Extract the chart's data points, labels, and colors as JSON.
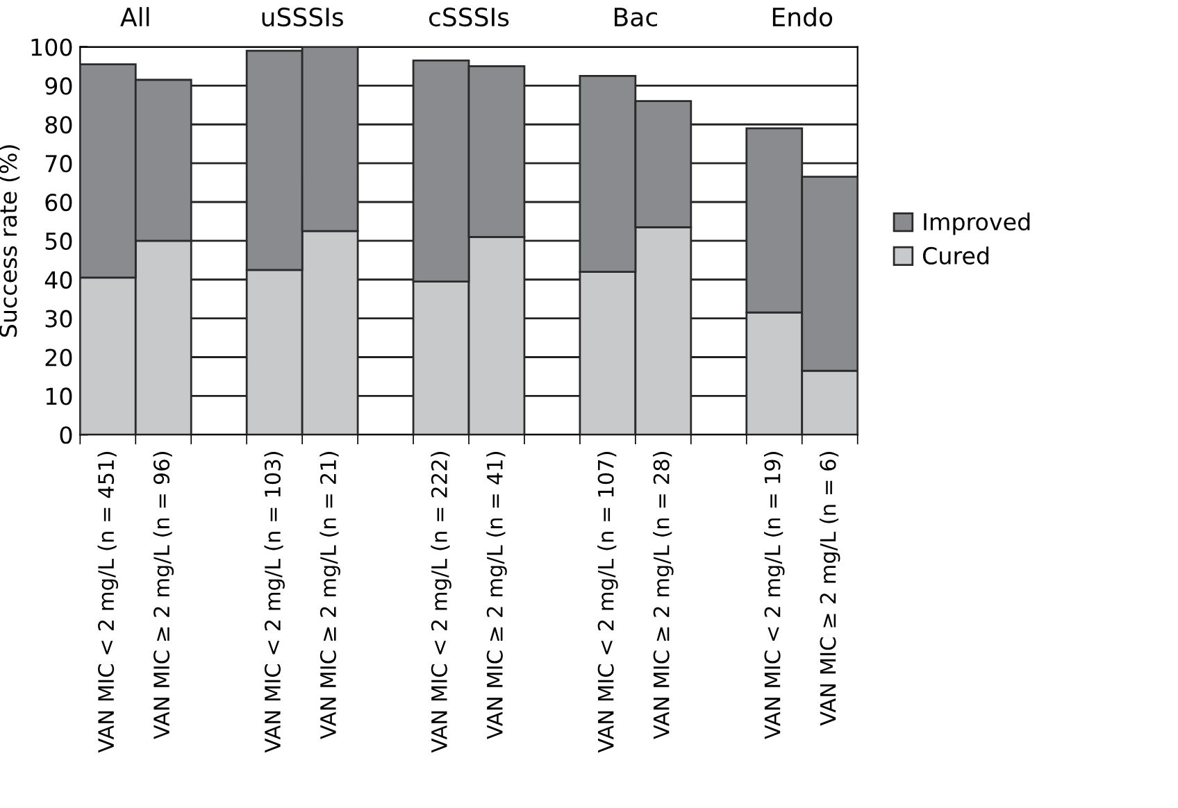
{
  "chart_data": {
    "type": "bar",
    "stacked": true,
    "ylabel": "Success rate (%)",
    "categories": [
      "VAN MIC < 2 mg/L (n = 451)",
      "VAN MIC ≥ 2 mg/L (n = 96)",
      null,
      "VAN MIC < 2 mg/L (n = 103)",
      "VAN MIC ≥ 2 mg/L (n = 21)",
      null,
      "VAN MIC < 2 mg/L (n = 222)",
      "VAN MIC ≥ 2 mg/L (n = 41)",
      null,
      "VAN MIC < 2 mg/L (n = 107)",
      "VAN MIC ≥ 2 mg/L (n = 28)",
      null,
      "VAN MIC < 2 mg/L (n = 19)",
      "VAN MIC ≥ 2 mg/L (n = 6)"
    ],
    "series": [
      {
        "name": "Cured",
        "color": "#c8c9cb",
        "values": [
          40.5,
          50,
          null,
          42.5,
          52.5,
          null,
          39.5,
          51,
          null,
          42,
          53.5,
          null,
          31.5,
          16.5
        ]
      },
      {
        "name": "Improved",
        "color": "#8a8b8e",
        "values": [
          55,
          41.5,
          null,
          56.5,
          47.5,
          null,
          57,
          44,
          null,
          50.5,
          32.5,
          null,
          47.5,
          50
        ]
      }
    ],
    "annotations": [
      "All",
      "uSSSIs",
      "cSSSIs",
      "Bac",
      "Endo"
    ],
    "ylim": [
      0,
      100
    ],
    "yticks": [
      0,
      10,
      20,
      30,
      40,
      50,
      60,
      70,
      80,
      90,
      100
    ],
    "grid": "y",
    "legend": "right"
  }
}
